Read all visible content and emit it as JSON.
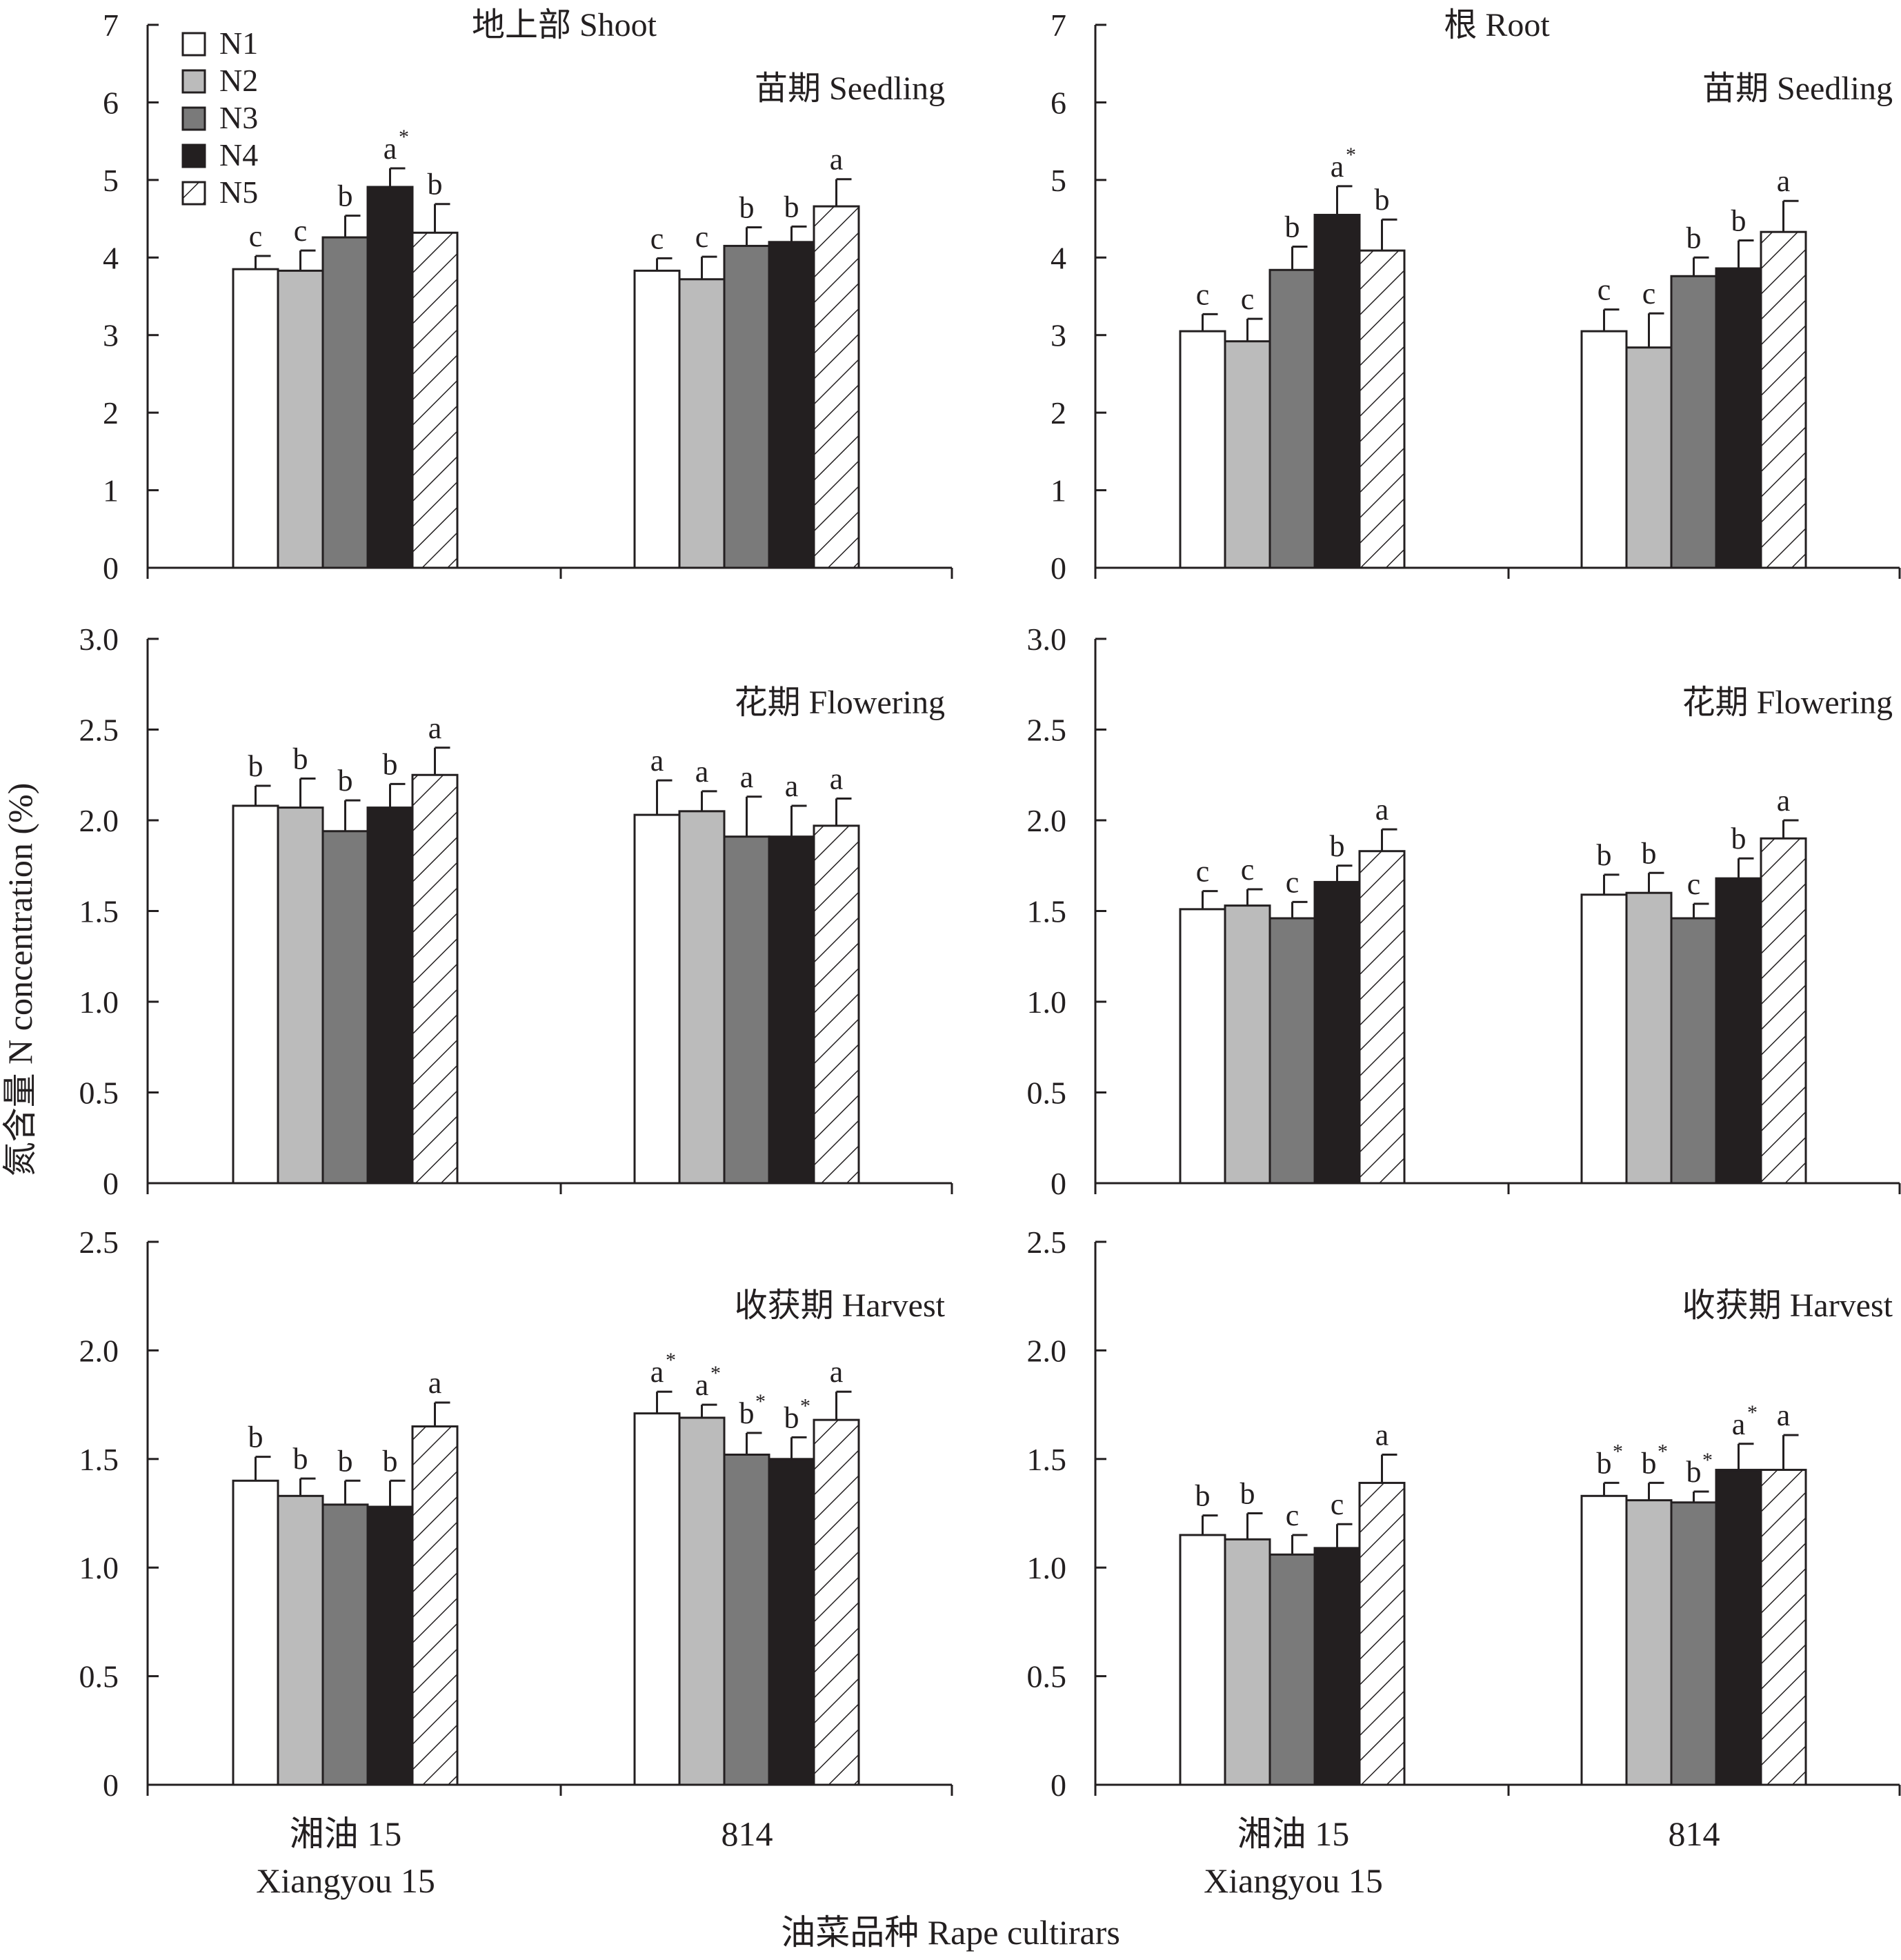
{
  "colors": {
    "N1": "#ffffff",
    "N2": "#bbbbbb",
    "N3": "#7a7a7a",
    "N4": "#231f20",
    "N5": "hatch",
    "ink": "#231f20"
  },
  "texts": {
    "ylabel": "氮含量 N concentration (%)",
    "xlabel": "油菜品种 Rape cultirars",
    "col_left_title": "地上部 Shoot",
    "col_right_title": "根 Root",
    "cat1_line1": "湘油 15",
    "cat1_line2": "Xiangyou 15",
    "cat2": "814"
  },
  "legend": [
    "N1",
    "N2",
    "N3",
    "N4",
    "N5"
  ],
  "chart_data": [
    {
      "type": "bar",
      "title": "地上部 Shoot",
      "stage": "苗期 Seedling",
      "categories": [
        "湘油 15",
        "814"
      ],
      "ylim": [
        0,
        7
      ],
      "yticks": [
        "0",
        "1",
        "2",
        "3",
        "4",
        "5",
        "6",
        "7"
      ],
      "tickvals": [
        0,
        1,
        2,
        3,
        4,
        5,
        6,
        7
      ],
      "series": [
        {
          "name": "N1",
          "values": [
            3.85,
            3.83
          ],
          "errors": [
            0.17,
            0.16
          ],
          "letters": [
            "c",
            "c"
          ],
          "stars": [
            false,
            false
          ]
        },
        {
          "name": "N2",
          "values": [
            3.83,
            3.72
          ],
          "errors": [
            0.26,
            0.29
          ],
          "letters": [
            "c",
            "c"
          ],
          "stars": [
            false,
            false
          ]
        },
        {
          "name": "N3",
          "values": [
            4.26,
            4.15
          ],
          "errors": [
            0.28,
            0.24
          ],
          "letters": [
            "b",
            "b"
          ],
          "stars": [
            false,
            false
          ]
        },
        {
          "name": "N4",
          "values": [
            4.91,
            4.2
          ],
          "errors": [
            0.24,
            0.2
          ],
          "letters": [
            "a",
            "b"
          ],
          "stars": [
            true,
            false
          ]
        },
        {
          "name": "N5",
          "values": [
            4.32,
            4.66
          ],
          "errors": [
            0.37,
            0.35
          ],
          "letters": [
            "b",
            "a"
          ],
          "stars": [
            false,
            false
          ]
        }
      ]
    },
    {
      "type": "bar",
      "title": "根 Root",
      "stage": "苗期 Seedling",
      "categories": [
        "湘油 15",
        "814"
      ],
      "ylim": [
        0,
        7
      ],
      "yticks": [
        "0",
        "1",
        "2",
        "3",
        "4",
        "5",
        "6",
        "7"
      ],
      "tickvals": [
        0,
        1,
        2,
        3,
        4,
        5,
        6,
        7
      ],
      "series": [
        {
          "name": "N1",
          "values": [
            3.05,
            3.05
          ],
          "errors": [
            0.22,
            0.28
          ],
          "letters": [
            "c",
            "c"
          ],
          "stars": [
            false,
            false
          ]
        },
        {
          "name": "N2",
          "values": [
            2.92,
            2.84
          ],
          "errors": [
            0.29,
            0.44
          ],
          "letters": [
            "c",
            "c"
          ],
          "stars": [
            false,
            false
          ]
        },
        {
          "name": "N3",
          "values": [
            3.84,
            3.76
          ],
          "errors": [
            0.3,
            0.24
          ],
          "letters": [
            "b",
            "b"
          ],
          "stars": [
            false,
            false
          ]
        },
        {
          "name": "N4",
          "values": [
            4.55,
            3.86
          ],
          "errors": [
            0.37,
            0.36
          ],
          "letters": [
            "a",
            "b"
          ],
          "stars": [
            true,
            false
          ]
        },
        {
          "name": "N5",
          "values": [
            4.09,
            4.33
          ],
          "errors": [
            0.4,
            0.4
          ],
          "letters": [
            "b",
            "a"
          ],
          "stars": [
            false,
            false
          ]
        }
      ]
    },
    {
      "type": "bar",
      "title": "",
      "stage": "花期 Flowering",
      "categories": [
        "湘油 15",
        "814"
      ],
      "ylim": [
        0,
        3
      ],
      "yticks": [
        "0",
        "0.5",
        "1.0",
        "1.5",
        "2.0",
        "2.5",
        "3.0"
      ],
      "tickvals": [
        0,
        0.5,
        1,
        1.5,
        2,
        2.5,
        3
      ],
      "series": [
        {
          "name": "N1",
          "values": [
            2.08,
            2.03
          ],
          "errors": [
            0.11,
            0.19
          ],
          "letters": [
            "b",
            "a"
          ],
          "stars": [
            false,
            false
          ]
        },
        {
          "name": "N2",
          "values": [
            2.07,
            2.05
          ],
          "errors": [
            0.16,
            0.11
          ],
          "letters": [
            "b",
            "a"
          ],
          "stars": [
            false,
            false
          ]
        },
        {
          "name": "N3",
          "values": [
            1.94,
            1.91
          ],
          "errors": [
            0.17,
            0.22
          ],
          "letters": [
            "b",
            "a"
          ],
          "stars": [
            false,
            false
          ]
        },
        {
          "name": "N4",
          "values": [
            2.07,
            1.91
          ],
          "errors": [
            0.13,
            0.17
          ],
          "letters": [
            "b",
            "a"
          ],
          "stars": [
            false,
            false
          ]
        },
        {
          "name": "N5",
          "values": [
            2.25,
            1.97
          ],
          "errors": [
            0.15,
            0.15
          ],
          "letters": [
            "a",
            "a"
          ],
          "stars": [
            false,
            false
          ]
        }
      ]
    },
    {
      "type": "bar",
      "title": "",
      "stage": "花期 Flowering",
      "categories": [
        "湘油 15",
        "814"
      ],
      "ylim": [
        0,
        3
      ],
      "yticks": [
        "0",
        "0.5",
        "1.0",
        "1.5",
        "2.0",
        "2.5",
        "3.0"
      ],
      "tickvals": [
        0,
        0.5,
        1,
        1.5,
        2,
        2.5,
        3
      ],
      "series": [
        {
          "name": "N1",
          "values": [
            1.51,
            1.59
          ],
          "errors": [
            0.1,
            0.11
          ],
          "letters": [
            "c",
            "b"
          ],
          "stars": [
            false,
            false
          ]
        },
        {
          "name": "N2",
          "values": [
            1.53,
            1.6
          ],
          "errors": [
            0.09,
            0.11
          ],
          "letters": [
            "c",
            "b"
          ],
          "stars": [
            false,
            false
          ]
        },
        {
          "name": "N3",
          "values": [
            1.46,
            1.46
          ],
          "errors": [
            0.09,
            0.08
          ],
          "letters": [
            "c",
            "c"
          ],
          "stars": [
            false,
            false
          ]
        },
        {
          "name": "N4",
          "values": [
            1.66,
            1.68
          ],
          "errors": [
            0.09,
            0.11
          ],
          "letters": [
            "b",
            "b"
          ],
          "stars": [
            false,
            false
          ]
        },
        {
          "name": "N5",
          "values": [
            1.83,
            1.9
          ],
          "errors": [
            0.12,
            0.1
          ],
          "letters": [
            "a",
            "a"
          ],
          "stars": [
            false,
            false
          ]
        }
      ]
    },
    {
      "type": "bar",
      "title": "",
      "stage": "收获期 Harvest",
      "categories": [
        "湘油 15",
        "814"
      ],
      "ylim": [
        0,
        2.5
      ],
      "yticks": [
        "0",
        "0.5",
        "1.0",
        "1.5",
        "2.0",
        "2.5"
      ],
      "tickvals": [
        0,
        0.5,
        1,
        1.5,
        2,
        2.5
      ],
      "series": [
        {
          "name": "N1",
          "values": [
            1.4,
            1.71
          ],
          "errors": [
            0.11,
            0.1
          ],
          "letters": [
            "b",
            "a"
          ],
          "stars": [
            false,
            true
          ]
        },
        {
          "name": "N2",
          "values": [
            1.33,
            1.69
          ],
          "errors": [
            0.08,
            0.06
          ],
          "letters": [
            "b",
            "a"
          ],
          "stars": [
            false,
            true
          ]
        },
        {
          "name": "N3",
          "values": [
            1.29,
            1.52
          ],
          "errors": [
            0.11,
            0.1
          ],
          "letters": [
            "b",
            "b"
          ],
          "stars": [
            false,
            true
          ]
        },
        {
          "name": "N4",
          "values": [
            1.28,
            1.5
          ],
          "errors": [
            0.12,
            0.1
          ],
          "letters": [
            "b",
            "b"
          ],
          "stars": [
            false,
            true
          ]
        },
        {
          "name": "N5",
          "values": [
            1.65,
            1.68
          ],
          "errors": [
            0.11,
            0.13
          ],
          "letters": [
            "a",
            "a"
          ],
          "stars": [
            false,
            false
          ]
        }
      ]
    },
    {
      "type": "bar",
      "title": "",
      "stage": "收获期 Harvest",
      "categories": [
        "湘油 15",
        "814"
      ],
      "ylim": [
        0,
        2.5
      ],
      "yticks": [
        "0",
        "0.5",
        "1.0",
        "1.5",
        "2.0",
        "2.5"
      ],
      "tickvals": [
        0,
        0.5,
        1,
        1.5,
        2,
        2.5
      ],
      "series": [
        {
          "name": "N1",
          "values": [
            1.15,
            1.33
          ],
          "errors": [
            0.09,
            0.06
          ],
          "letters": [
            "b",
            "b"
          ],
          "stars": [
            false,
            true
          ]
        },
        {
          "name": "N2",
          "values": [
            1.13,
            1.31
          ],
          "errors": [
            0.12,
            0.08
          ],
          "letters": [
            "b",
            "b"
          ],
          "stars": [
            false,
            true
          ]
        },
        {
          "name": "N3",
          "values": [
            1.06,
            1.3
          ],
          "errors": [
            0.09,
            0.05
          ],
          "letters": [
            "c",
            "b"
          ],
          "stars": [
            false,
            true
          ]
        },
        {
          "name": "N4",
          "values": [
            1.09,
            1.45
          ],
          "errors": [
            0.11,
            0.12
          ],
          "letters": [
            "c",
            "a"
          ],
          "stars": [
            false,
            true
          ]
        },
        {
          "name": "N5",
          "values": [
            1.39,
            1.45
          ],
          "errors": [
            0.13,
            0.16
          ],
          "letters": [
            "a",
            "a"
          ],
          "stars": [
            false,
            false
          ]
        }
      ]
    }
  ]
}
